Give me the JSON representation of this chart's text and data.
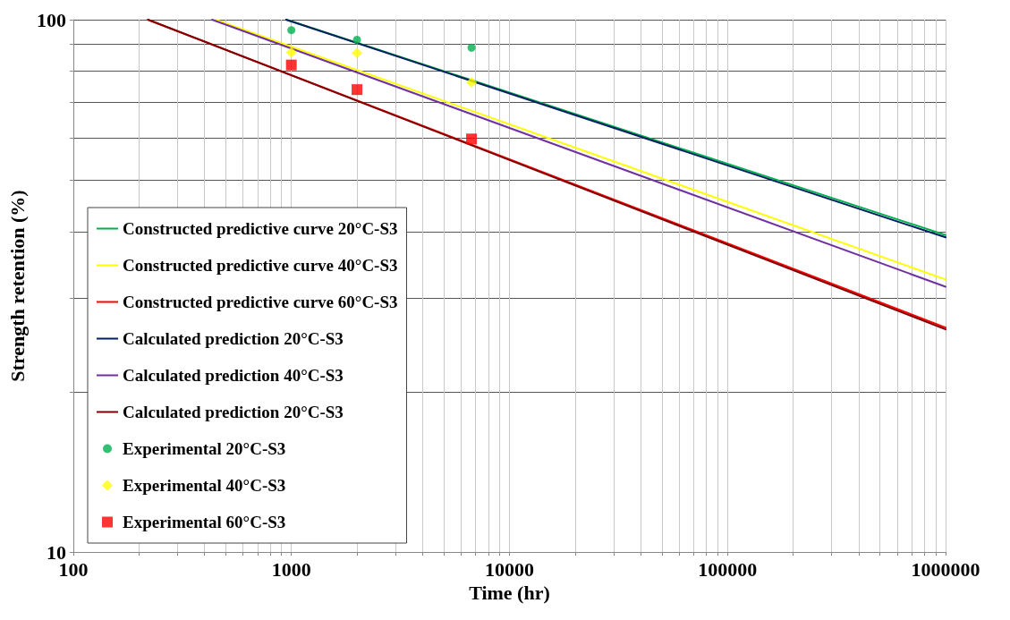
{
  "chart_data": {
    "type": "line",
    "xlabel": "Time (hr)",
    "ylabel": "Strength retention (%)",
    "log": "xy",
    "grid": true,
    "legend": "bottom left",
    "line_style": "solid",
    "xlim": [
      100,
      1000000
    ],
    "ylim": [
      10,
      100
    ],
    "xticks": [
      100,
      {
        "value": 200,
        "label": null
      },
      {
        "value": 300,
        "label": null
      },
      {
        "value": 400,
        "label": null
      },
      {
        "value": 500,
        "label": null
      },
      {
        "value": 600,
        "label": null
      },
      {
        "value": 700,
        "label": null
      },
      {
        "value": 800,
        "label": null
      },
      {
        "value": 900,
        "label": null
      },
      1000,
      {
        "value": 2000,
        "label": null
      },
      {
        "value": 3000,
        "label": null
      },
      {
        "value": 4000,
        "label": null
      },
      {
        "value": 5000,
        "label": null
      },
      {
        "value": 6000,
        "label": null
      },
      {
        "value": 7000,
        "label": null
      },
      {
        "value": 8000,
        "label": null
      },
      {
        "value": 9000,
        "label": null
      },
      10000,
      {
        "value": 20000,
        "label": null
      },
      {
        "value": 30000,
        "label": null
      },
      {
        "value": 40000,
        "label": null
      },
      {
        "value": 50000,
        "label": null
      },
      {
        "value": 60000,
        "label": null
      },
      {
        "value": 70000,
        "label": null
      },
      {
        "value": 80000,
        "label": null
      },
      {
        "value": 90000,
        "label": null
      },
      100000,
      {
        "value": 200000,
        "label": null
      },
      {
        "value": 300000,
        "label": null
      },
      {
        "value": 400000,
        "label": null
      },
      {
        "value": 500000,
        "label": null
      },
      {
        "value": 600000,
        "label": null
      },
      {
        "value": 700000,
        "label": null
      },
      {
        "value": 800000,
        "label": null
      },
      {
        "value": 900000,
        "label": null
      },
      1000000
    ],
    "yticks": [
      10,
      {
        "value": 20,
        "label": null
      },
      {
        "value": 30,
        "label": null
      },
      {
        "value": 40,
        "label": null
      },
      {
        "value": 50,
        "label": null
      },
      {
        "value": 60,
        "label": null
      },
      {
        "value": 70,
        "label": null
      },
      {
        "value": 80,
        "label": null
      },
      {
        "value": 90,
        "label": null
      },
      100
    ],
    "series": [
      {
        "name": "Constructed predictive curve 20°C-S3",
        "type": "line",
        "marker": "none",
        "color": "#00b050",
        "x": [
          950,
          1000000
        ],
        "values": [
          100,
          39.4
        ]
      },
      {
        "name": "Constructed predictive curve 40°C-S3",
        "type": "line",
        "marker": "none",
        "color": "#ffff00",
        "x": [
          450,
          1000000
        ],
        "values": [
          100,
          32.5
        ]
      },
      {
        "name": "Constructed predictive curve 60°C-S3",
        "type": "line",
        "marker": "none",
        "color": "#ff0000",
        "x": [
          220,
          1000000
        ],
        "values": [
          100,
          26.4
        ]
      },
      {
        "name": "Calculated prediction 20°C-S3",
        "type": "line",
        "marker": "none",
        "color": "#002060",
        "x": [
          946,
          1000000
        ],
        "values": [
          100,
          39.0
        ]
      },
      {
        "name": "Calculated prediction 40°C-S3",
        "type": "line",
        "marker": "none",
        "color": "#7030a0",
        "x": [
          433,
          1000000
        ],
        "values": [
          100,
          31.5
        ]
      },
      {
        "name": "Calculated prediction 20°C-S3",
        "type": "line",
        "marker": "none",
        "color": "#7f0000",
        "x": [
          220,
          1000000
        ],
        "values": [
          100,
          26.2
        ]
      },
      {
        "name": "Experimental 20°C-S3",
        "type": "scatter",
        "marker": "circle",
        "color": "#00b050",
        "x": [
          1000,
          2000,
          6700
        ],
        "values": [
          95.6,
          91.7,
          88.6
        ]
      },
      {
        "name": "Experimental 40°C-S3",
        "type": "scatter",
        "marker": "diamond",
        "color": "#ffff00",
        "x": [
          1000,
          2000,
          6700
        ],
        "values": [
          86.8,
          86.6,
          76.3
        ]
      },
      {
        "name": "Experimental 60°C-S3",
        "type": "scatter",
        "marker": "square",
        "color": "#ff0000",
        "x": [
          1000,
          2000,
          6700
        ],
        "values": [
          82.2,
          73.9,
          59.7
        ]
      }
    ]
  }
}
